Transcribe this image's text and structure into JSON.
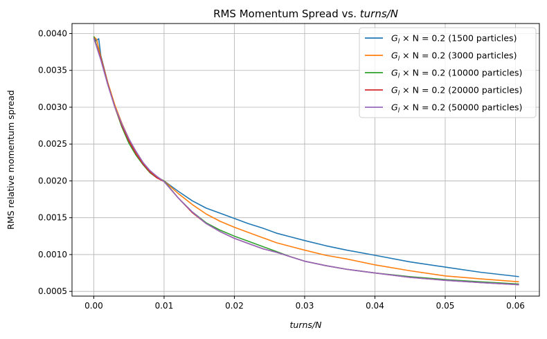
{
  "chart_data": {
    "type": "line",
    "title": "RMS Momentum Spread vs. turns/N",
    "xlabel": "turns/N",
    "ylabel": "RMS relative momentum spread",
    "xlim": [
      -0.0031,
      0.0634
    ],
    "ylim": [
      0.000436,
      0.004136
    ],
    "xticks": [
      0.0,
      0.01,
      0.02,
      0.03,
      0.04,
      0.05,
      0.06
    ],
    "xtick_labels": [
      "0.00",
      "0.01",
      "0.02",
      "0.03",
      "0.04",
      "0.05",
      "0.06"
    ],
    "yticks": [
      0.0005,
      0.001,
      0.0015,
      0.002,
      0.0025,
      0.003,
      0.0035,
      0.004
    ],
    "ytick_labels": [
      "0.0005",
      "0.0010",
      "0.0015",
      "0.0020",
      "0.0025",
      "0.0030",
      "0.0035",
      "0.0040"
    ],
    "grid": true,
    "legend_position": "top-right",
    "series": [
      {
        "name": "G_l × N = 0.2 (1500 particles)",
        "legend_prefix": "G",
        "legend_sub": "l",
        "legend_rest": " × N = 0.2 (1500 particles)",
        "color": "#1f77b4",
        "x": [
          0.0,
          0.0003,
          0.0007,
          0.001,
          0.002,
          0.003,
          0.004,
          0.005,
          0.006,
          0.007,
          0.008,
          0.009,
          0.01,
          0.012,
          0.014,
          0.016,
          0.018,
          0.02,
          0.022,
          0.024,
          0.026,
          0.028,
          0.03,
          0.033,
          0.036,
          0.04,
          0.045,
          0.05,
          0.055,
          0.0605
        ],
        "y": [
          0.00396,
          0.0039,
          0.00393,
          0.0037,
          0.00333,
          0.00302,
          0.00278,
          0.00256,
          0.0024,
          0.00225,
          0.00213,
          0.00205,
          0.002,
          0.00186,
          0.00173,
          0.00163,
          0.00156,
          0.00149,
          0.00142,
          0.00136,
          0.00129,
          0.00124,
          0.00119,
          0.00112,
          0.00106,
          0.00099,
          0.0009,
          0.00083,
          0.00076,
          0.0007
        ]
      },
      {
        "name": "G_l × N = 0.2 (3000 particles)",
        "legend_prefix": "G",
        "legend_sub": "l",
        "legend_rest": " × N = 0.2 (3000 particles)",
        "color": "#ff7f0e",
        "x": [
          0.0,
          0.0004,
          0.001,
          0.002,
          0.003,
          0.004,
          0.005,
          0.006,
          0.007,
          0.008,
          0.009,
          0.01,
          0.012,
          0.014,
          0.016,
          0.018,
          0.02,
          0.022,
          0.024,
          0.026,
          0.028,
          0.03,
          0.033,
          0.036,
          0.04,
          0.045,
          0.05,
          0.055,
          0.0605
        ],
        "y": [
          0.00396,
          0.00392,
          0.00368,
          0.00333,
          0.00303,
          0.00278,
          0.00257,
          0.0024,
          0.00225,
          0.00213,
          0.00205,
          0.002,
          0.00183,
          0.00168,
          0.00155,
          0.00145,
          0.00137,
          0.0013,
          0.00123,
          0.00116,
          0.00111,
          0.00106,
          0.00099,
          0.00094,
          0.00086,
          0.00078,
          0.00071,
          0.00067,
          0.00063
        ]
      },
      {
        "name": "G_l × N = 0.2 (10000 particles)",
        "legend_prefix": "G",
        "legend_sub": "l",
        "legend_rest": " × N = 0.2 (10000 particles)",
        "color": "#2ca02c",
        "x": [
          0.0,
          0.001,
          0.002,
          0.003,
          0.004,
          0.005,
          0.006,
          0.007,
          0.008,
          0.009,
          0.01,
          0.012,
          0.014,
          0.016,
          0.018,
          0.02,
          0.022,
          0.024,
          0.026,
          0.028,
          0.03,
          0.033,
          0.036,
          0.04,
          0.045,
          0.05,
          0.055,
          0.0605
        ],
        "y": [
          0.00396,
          0.00366,
          0.00331,
          0.003,
          0.00273,
          0.00251,
          0.00235,
          0.00222,
          0.00211,
          0.00204,
          0.002,
          0.00177,
          0.00158,
          0.00143,
          0.00133,
          0.00125,
          0.00118,
          0.00111,
          0.00104,
          0.00097,
          0.00091,
          0.00085,
          0.0008,
          0.00075,
          0.0007,
          0.00066,
          0.00063,
          0.0006
        ]
      },
      {
        "name": "G_l × N = 0.2 (20000 particles)",
        "legend_prefix": "G",
        "legend_sub": "l",
        "legend_rest": " × N = 0.2 (20000 particles)",
        "color": "#d62728",
        "x": [
          0.0,
          0.001,
          0.002,
          0.003,
          0.004,
          0.005,
          0.006,
          0.007,
          0.008,
          0.009,
          0.01,
          0.012,
          0.014,
          0.016,
          0.018,
          0.02,
          0.022,
          0.024,
          0.026,
          0.028,
          0.03,
          0.033,
          0.036,
          0.04,
          0.045,
          0.05,
          0.055,
          0.0605
        ],
        "y": [
          0.00394,
          0.00366,
          0.00331,
          0.003,
          0.00275,
          0.00254,
          0.00237,
          0.00223,
          0.00212,
          0.00204,
          0.00199,
          0.00177,
          0.00157,
          0.00142,
          0.00131,
          0.00122,
          0.00115,
          0.00108,
          0.00103,
          0.00097,
          0.00091,
          0.00085,
          0.0008,
          0.00075,
          0.00069,
          0.00065,
          0.00062,
          0.00059
        ]
      },
      {
        "name": "G_l × N = 0.2 (50000 particles)",
        "legend_prefix": "G",
        "legend_sub": "l",
        "legend_rest": " × N = 0.2 (50000 particles)",
        "color": "#9467bd",
        "x": [
          0.0,
          0.001,
          0.002,
          0.003,
          0.004,
          0.005,
          0.006,
          0.007,
          0.008,
          0.009,
          0.01,
          0.012,
          0.014,
          0.016,
          0.018,
          0.02,
          0.022,
          0.024,
          0.026,
          0.028,
          0.03,
          0.033,
          0.036,
          0.04,
          0.045,
          0.05,
          0.055,
          0.0605
        ],
        "y": [
          0.00394,
          0.00364,
          0.0033,
          0.003,
          0.00277,
          0.00257,
          0.0024,
          0.00225,
          0.00214,
          0.00206,
          0.00199,
          0.00177,
          0.00158,
          0.00142,
          0.00131,
          0.00122,
          0.00115,
          0.00108,
          0.00103,
          0.00097,
          0.00091,
          0.00085,
          0.0008,
          0.00075,
          0.00069,
          0.00065,
          0.00062,
          0.00059
        ]
      }
    ]
  }
}
